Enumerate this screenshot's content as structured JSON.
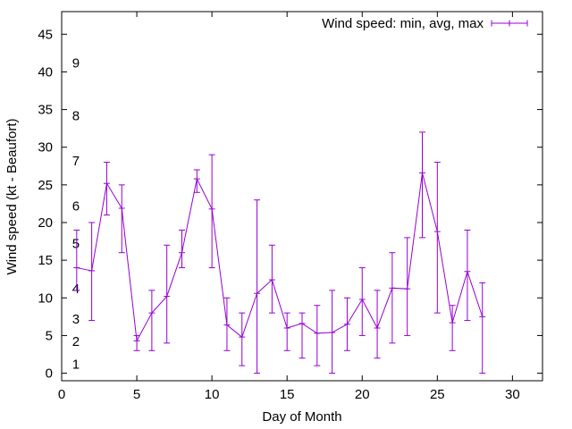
{
  "chart_data": {
    "type": "line",
    "title": "",
    "xlabel": "Day of Month",
    "ylabel": "Wind speed (kt - Beaufort)",
    "xlim": [
      0,
      32
    ],
    "ylim": [
      -1,
      48
    ],
    "xticks": [
      0,
      5,
      10,
      15,
      20,
      25,
      30
    ],
    "yticks": [
      0,
      5,
      10,
      15,
      20,
      25,
      30,
      35,
      40,
      45
    ],
    "grid": false,
    "legend_position": "top-right",
    "series": [
      {
        "name": "Wind speed: min, avg, max",
        "color": "#9400d3",
        "x": [
          1,
          2,
          3,
          4,
          5,
          6,
          7,
          8,
          9,
          10,
          11,
          12,
          13,
          14,
          15,
          16,
          17,
          18,
          19,
          20,
          21,
          22,
          23,
          24,
          25,
          26,
          27,
          28
        ],
        "min": [
          11,
          7,
          21,
          16,
          3,
          3,
          4,
          14,
          24,
          14,
          3,
          1,
          0,
          8,
          3,
          2,
          1,
          0,
          3,
          5,
          2,
          4,
          5,
          18,
          8,
          3,
          7,
          0
        ],
        "avg": [
          14,
          13.6,
          25.2,
          21.9,
          4.3,
          8,
          10.2,
          16,
          25.8,
          21.8,
          6.4,
          4.8,
          10.6,
          12.4,
          6,
          6.6,
          5.3,
          5.4,
          6.5,
          9.8,
          6,
          11.3,
          11.2,
          26.6,
          18.8,
          6.7,
          13.5,
          7.5
        ],
        "max": [
          19,
          20,
          28,
          25,
          5,
          11,
          17,
          19,
          27,
          29,
          10,
          8,
          23,
          17,
          8,
          8,
          9,
          11,
          10,
          14,
          11,
          16,
          18,
          32,
          28,
          9,
          19,
          12
        ]
      }
    ],
    "annotations": [
      {
        "text": "1",
        "x": 0.7,
        "y": 1.2
      },
      {
        "text": "2",
        "x": 0.7,
        "y": 4.2
      },
      {
        "text": "3",
        "x": 0.7,
        "y": 7.2
      },
      {
        "text": "4",
        "x": 0.7,
        "y": 11.2
      },
      {
        "text": "5",
        "x": 0.7,
        "y": 17.2
      },
      {
        "text": "6",
        "x": 0.7,
        "y": 22.2
      },
      {
        "text": "7",
        "x": 0.7,
        "y": 28.2
      },
      {
        "text": "8",
        "x": 0.7,
        "y": 34.2
      },
      {
        "text": "9",
        "x": 0.7,
        "y": 41.2
      }
    ]
  }
}
